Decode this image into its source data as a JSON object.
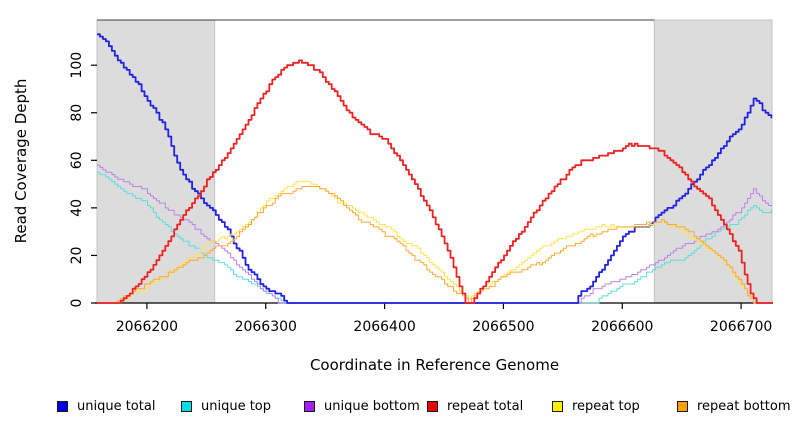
{
  "chart_data": {
    "type": "line",
    "title": "",
    "xlabel": "Coordinate in Reference Genome",
    "ylabel": "Read Coverage Depth",
    "xlim": [
      2066158,
      2066726
    ],
    "ylim": [
      0,
      119
    ],
    "x_ticks": [
      2066200,
      2066300,
      2066400,
      2066500,
      2066600,
      2066700
    ],
    "y_ticks": [
      0,
      20,
      40,
      60,
      80,
      100
    ],
    "grid": false,
    "legend_position": "bottom",
    "shaded_regions": [
      {
        "x_start": 2066158,
        "x_end": 2066257,
        "color": "#dcdcdc"
      },
      {
        "x_start": 2066627,
        "x_end": 2066726,
        "color": "#dcdcdc"
      }
    ],
    "series": [
      {
        "name": "unique total",
        "line_color": "#2222e0",
        "legend_color": "#0000e8",
        "line_width": 1.8,
        "keypoints": [
          [
            2066158,
            113
          ],
          [
            2066168,
            107
          ],
          [
            2066180,
            99
          ],
          [
            2066194,
            90
          ],
          [
            2066205,
            82
          ],
          [
            2066215,
            74
          ],
          [
            2066228,
            57
          ],
          [
            2066240,
            46
          ],
          [
            2066250,
            41
          ],
          [
            2066257,
            38
          ],
          [
            2066266,
            33
          ],
          [
            2066275,
            24
          ],
          [
            2066287,
            14
          ],
          [
            2066295,
            9
          ],
          [
            2066305,
            5
          ],
          [
            2066312,
            4
          ],
          [
            2066318,
            1
          ],
          [
            2066322,
            0
          ],
          [
            2066560,
            0
          ],
          [
            2066572,
            6
          ],
          [
            2066582,
            15
          ],
          [
            2066592,
            22
          ],
          [
            2066600,
            27
          ],
          [
            2066610,
            31
          ],
          [
            2066620,
            33
          ],
          [
            2066627,
            36
          ],
          [
            2066638,
            41
          ],
          [
            2066649,
            46
          ],
          [
            2066660,
            52
          ],
          [
            2066670,
            58
          ],
          [
            2066680,
            63
          ],
          [
            2066690,
            69
          ],
          [
            2066700,
            76
          ],
          [
            2066706,
            82
          ],
          [
            2066711,
            88
          ],
          [
            2066715,
            86
          ],
          [
            2066719,
            82
          ],
          [
            2066726,
            79
          ]
        ]
      },
      {
        "name": "unique top",
        "line_color": "#5cdede",
        "legend_color": "#00e0e0",
        "line_width": 1,
        "keypoints": [
          [
            2066158,
            54
          ],
          [
            2066170,
            51
          ],
          [
            2066182,
            47
          ],
          [
            2066194,
            44
          ],
          [
            2066205,
            38
          ],
          [
            2066215,
            33
          ],
          [
            2066228,
            27
          ],
          [
            2066240,
            22
          ],
          [
            2066250,
            18
          ],
          [
            2066257,
            17
          ],
          [
            2066266,
            15
          ],
          [
            2066275,
            11
          ],
          [
            2066287,
            8
          ],
          [
            2066297,
            4
          ],
          [
            2066308,
            2
          ],
          [
            2066315,
            0
          ],
          [
            2066577,
            0
          ],
          [
            2066590,
            3
          ],
          [
            2066600,
            6
          ],
          [
            2066612,
            8
          ],
          [
            2066627,
            13
          ],
          [
            2066640,
            17
          ],
          [
            2066652,
            20
          ],
          [
            2066665,
            24
          ],
          [
            2066678,
            28
          ],
          [
            2066690,
            31
          ],
          [
            2066698,
            34
          ],
          [
            2066707,
            40
          ],
          [
            2066712,
            41
          ],
          [
            2066717,
            38
          ],
          [
            2066726,
            37
          ]
        ]
      },
      {
        "name": "unique bottom",
        "line_color": "#bb84ea",
        "legend_color": "#a021f0",
        "line_width": 1,
        "keypoints": [
          [
            2066158,
            58
          ],
          [
            2066170,
            55
          ],
          [
            2066182,
            52
          ],
          [
            2066194,
            49
          ],
          [
            2066205,
            46
          ],
          [
            2066215,
            42
          ],
          [
            2066228,
            37
          ],
          [
            2066240,
            33
          ],
          [
            2066250,
            29
          ],
          [
            2066257,
            27
          ],
          [
            2066266,
            24
          ],
          [
            2066275,
            18
          ],
          [
            2066287,
            12
          ],
          [
            2066297,
            6
          ],
          [
            2066306,
            3
          ],
          [
            2066313,
            0
          ],
          [
            2066563,
            0
          ],
          [
            2066575,
            5
          ],
          [
            2066585,
            8
          ],
          [
            2066600,
            11
          ],
          [
            2066615,
            14
          ],
          [
            2066627,
            17
          ],
          [
            2066640,
            21
          ],
          [
            2066652,
            25
          ],
          [
            2066665,
            28
          ],
          [
            2066678,
            32
          ],
          [
            2066690,
            36
          ],
          [
            2066700,
            41
          ],
          [
            2066706,
            46
          ],
          [
            2066710,
            49
          ],
          [
            2066716,
            46
          ],
          [
            2066722,
            43
          ],
          [
            2066726,
            42
          ]
        ]
      },
      {
        "name": "repeat total",
        "line_color": "#ee2222",
        "legend_color": "#ee0000",
        "line_width": 1.8,
        "keypoints": [
          [
            2066158,
            0
          ],
          [
            2066172,
            0
          ],
          [
            2066180,
            3
          ],
          [
            2066194,
            9
          ],
          [
            2066205,
            17
          ],
          [
            2066215,
            25
          ],
          [
            2066228,
            36
          ],
          [
            2066240,
            45
          ],
          [
            2066250,
            52
          ],
          [
            2066257,
            57
          ],
          [
            2066266,
            62
          ],
          [
            2066275,
            69
          ],
          [
            2066287,
            78
          ],
          [
            2066295,
            85
          ],
          [
            2066305,
            92
          ],
          [
            2066315,
            97
          ],
          [
            2066322,
            99
          ],
          [
            2066330,
            100
          ],
          [
            2066338,
            98
          ],
          [
            2066345,
            95
          ],
          [
            2066355,
            89
          ],
          [
            2066365,
            82
          ],
          [
            2066378,
            74
          ],
          [
            2066390,
            70
          ],
          [
            2066401,
            67
          ],
          [
            2066412,
            59
          ],
          [
            2066424,
            50
          ],
          [
            2066435,
            41
          ],
          [
            2066445,
            31
          ],
          [
            2066455,
            20
          ],
          [
            2066462,
            10
          ],
          [
            2066468,
            2
          ],
          [
            2066471,
            1
          ],
          [
            2066478,
            5
          ],
          [
            2066488,
            12
          ],
          [
            2066500,
            20
          ],
          [
            2066512,
            28
          ],
          [
            2066524,
            37
          ],
          [
            2066535,
            45
          ],
          [
            2066545,
            51
          ],
          [
            2066557,
            57
          ],
          [
            2066568,
            61
          ],
          [
            2066582,
            63
          ],
          [
            2066592,
            65
          ],
          [
            2066605,
            67
          ],
          [
            2066616,
            68
          ],
          [
            2066627,
            66
          ],
          [
            2066638,
            61
          ],
          [
            2066649,
            57
          ],
          [
            2066660,
            50
          ],
          [
            2066670,
            45
          ],
          [
            2066680,
            37
          ],
          [
            2066690,
            28
          ],
          [
            2066698,
            20
          ],
          [
            2066704,
            10
          ],
          [
            2066709,
            3
          ],
          [
            2066712,
            0
          ],
          [
            2066726,
            0
          ]
        ]
      },
      {
        "name": "repeat top",
        "line_color": "#ffe24d",
        "legend_color": "#fff000",
        "line_width": 1,
        "keypoints": [
          [
            2066158,
            0
          ],
          [
            2066172,
            0
          ],
          [
            2066182,
            3
          ],
          [
            2066194,
            6
          ],
          [
            2066205,
            10
          ],
          [
            2066215,
            13
          ],
          [
            2066228,
            17
          ],
          [
            2066240,
            20
          ],
          [
            2066250,
            24
          ],
          [
            2066257,
            26
          ],
          [
            2066266,
            28
          ],
          [
            2066278,
            33
          ],
          [
            2066290,
            38
          ],
          [
            2066300,
            43
          ],
          [
            2066312,
            47
          ],
          [
            2066322,
            49
          ],
          [
            2066332,
            50
          ],
          [
            2066342,
            49
          ],
          [
            2066352,
            46
          ],
          [
            2066365,
            42
          ],
          [
            2066378,
            38
          ],
          [
            2066390,
            34
          ],
          [
            2066401,
            31
          ],
          [
            2066415,
            26
          ],
          [
            2066428,
            21
          ],
          [
            2066440,
            15
          ],
          [
            2066452,
            9
          ],
          [
            2066462,
            4
          ],
          [
            2066470,
            1
          ],
          [
            2066480,
            4
          ],
          [
            2066492,
            8
          ],
          [
            2066505,
            12
          ],
          [
            2066518,
            17
          ],
          [
            2066530,
            21
          ],
          [
            2066542,
            24
          ],
          [
            2066555,
            27
          ],
          [
            2066568,
            29
          ],
          [
            2066582,
            31
          ],
          [
            2066596,
            32
          ],
          [
            2066610,
            33
          ],
          [
            2066622,
            34
          ],
          [
            2066635,
            35
          ],
          [
            2066645,
            33
          ],
          [
            2066655,
            30
          ],
          [
            2066665,
            27
          ],
          [
            2066675,
            23
          ],
          [
            2066684,
            19
          ],
          [
            2066692,
            14
          ],
          [
            2066700,
            9
          ],
          [
            2066707,
            4
          ],
          [
            2066712,
            1
          ],
          [
            2066716,
            0
          ],
          [
            2066726,
            0
          ]
        ]
      },
      {
        "name": "repeat bottom",
        "line_color": "#ffa82e",
        "legend_color": "#ffa000",
        "line_width": 1,
        "keypoints": [
          [
            2066158,
            0
          ],
          [
            2066173,
            0
          ],
          [
            2066183,
            2
          ],
          [
            2066194,
            5
          ],
          [
            2066205,
            8
          ],
          [
            2066215,
            12
          ],
          [
            2066228,
            16
          ],
          [
            2066240,
            19
          ],
          [
            2066250,
            22
          ],
          [
            2066257,
            24
          ],
          [
            2066266,
            26
          ],
          [
            2066278,
            31
          ],
          [
            2066290,
            36
          ],
          [
            2066300,
            41
          ],
          [
            2066312,
            45
          ],
          [
            2066322,
            47
          ],
          [
            2066332,
            48
          ],
          [
            2066342,
            47
          ],
          [
            2066352,
            45
          ],
          [
            2066365,
            41
          ],
          [
            2066378,
            36
          ],
          [
            2066390,
            32
          ],
          [
            2066401,
            29
          ],
          [
            2066415,
            24
          ],
          [
            2066428,
            19
          ],
          [
            2066440,
            14
          ],
          [
            2066452,
            8
          ],
          [
            2066462,
            3
          ],
          [
            2066470,
            0
          ],
          [
            2066480,
            3
          ],
          [
            2066492,
            7
          ],
          [
            2066505,
            11
          ],
          [
            2066518,
            15
          ],
          [
            2066530,
            18
          ],
          [
            2066542,
            21
          ],
          [
            2066555,
            24
          ],
          [
            2066568,
            26
          ],
          [
            2066582,
            28
          ],
          [
            2066596,
            30
          ],
          [
            2066610,
            31
          ],
          [
            2066622,
            32
          ],
          [
            2066632,
            33
          ],
          [
            2066645,
            31
          ],
          [
            2066655,
            29
          ],
          [
            2066665,
            25
          ],
          [
            2066675,
            21
          ],
          [
            2066684,
            17
          ],
          [
            2066692,
            12
          ],
          [
            2066700,
            7
          ],
          [
            2066707,
            2
          ],
          [
            2066711,
            0
          ],
          [
            2066726,
            0
          ]
        ]
      }
    ]
  }
}
